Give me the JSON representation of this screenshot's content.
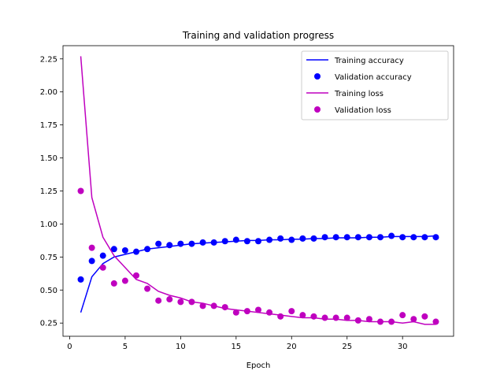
{
  "chart_data": {
    "type": "line",
    "title": "Training and validation progress",
    "xlabel": "Epoch",
    "ylabel": "",
    "xlim": [
      -0.6,
      34.6
    ],
    "ylim": [
      0.15,
      2.35
    ],
    "xticks": [
      0,
      5,
      10,
      15,
      20,
      25,
      30
    ],
    "yticks": [
      0.25,
      0.5,
      0.75,
      1.0,
      1.25,
      1.5,
      1.75,
      2.0,
      2.25
    ],
    "legend_position": "top-right",
    "grid": false,
    "x": [
      1,
      2,
      3,
      4,
      5,
      6,
      7,
      8,
      9,
      10,
      11,
      12,
      13,
      14,
      15,
      16,
      17,
      18,
      19,
      20,
      21,
      22,
      23,
      24,
      25,
      26,
      27,
      28,
      29,
      30,
      31,
      32,
      33
    ],
    "series": [
      {
        "name": "Training accuracy",
        "style": "line",
        "color": "#0000ff",
        "values": [
          0.33,
          0.6,
          0.7,
          0.75,
          0.77,
          0.79,
          0.81,
          0.82,
          0.83,
          0.84,
          0.85,
          0.855,
          0.86,
          0.865,
          0.87,
          0.875,
          0.875,
          0.88,
          0.88,
          0.885,
          0.885,
          0.89,
          0.89,
          0.895,
          0.895,
          0.895,
          0.9,
          0.9,
          0.905,
          0.905,
          0.905,
          0.905,
          0.91
        ]
      },
      {
        "name": "Validation accuracy",
        "style": "marker",
        "color": "#0000ff",
        "values": [
          0.58,
          0.72,
          0.76,
          0.81,
          0.8,
          0.79,
          0.81,
          0.85,
          0.84,
          0.85,
          0.85,
          0.86,
          0.86,
          0.87,
          0.88,
          0.87,
          0.87,
          0.88,
          0.89,
          0.88,
          0.89,
          0.89,
          0.9,
          0.9,
          0.9,
          0.9,
          0.9,
          0.9,
          0.91,
          0.9,
          0.9,
          0.9,
          0.9
        ]
      },
      {
        "name": "Training loss",
        "style": "line",
        "color": "#bf00bf",
        "values": [
          2.27,
          1.2,
          0.9,
          0.76,
          0.67,
          0.58,
          0.55,
          0.49,
          0.46,
          0.44,
          0.41,
          0.4,
          0.38,
          0.36,
          0.35,
          0.34,
          0.33,
          0.32,
          0.31,
          0.3,
          0.29,
          0.29,
          0.28,
          0.28,
          0.27,
          0.27,
          0.26,
          0.26,
          0.26,
          0.25,
          0.26,
          0.24,
          0.24
        ]
      },
      {
        "name": "Validation loss",
        "style": "marker",
        "color": "#bf00bf",
        "values": [
          1.25,
          0.82,
          0.67,
          0.55,
          0.57,
          0.61,
          0.51,
          0.42,
          0.43,
          0.41,
          0.41,
          0.38,
          0.38,
          0.37,
          0.33,
          0.34,
          0.35,
          0.33,
          0.3,
          0.34,
          0.31,
          0.3,
          0.29,
          0.29,
          0.29,
          0.27,
          0.28,
          0.26,
          0.26,
          0.31,
          0.28,
          0.3,
          0.26
        ]
      }
    ]
  }
}
